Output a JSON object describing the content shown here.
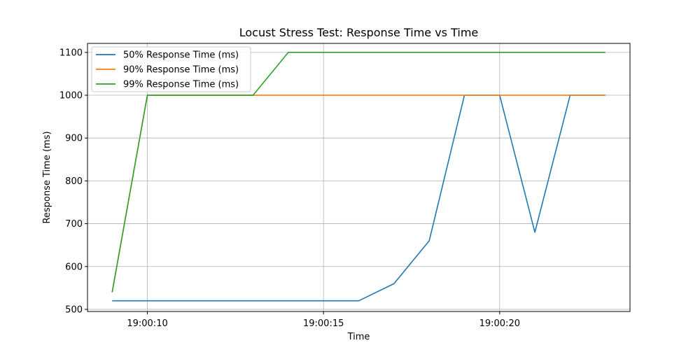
{
  "chart_data": {
    "type": "line",
    "title": "Locust Stress Test: Response Time vs Time",
    "xlabel": "Time",
    "ylabel": "Response Time (ms)",
    "x": [
      "19:00:09",
      "19:00:10",
      "19:00:11",
      "19:00:12",
      "19:00:13",
      "19:00:14",
      "19:00:15",
      "19:00:16",
      "19:00:17",
      "19:00:18",
      "19:00:19",
      "19:00:20",
      "19:00:21",
      "19:00:22",
      "19:00:23"
    ],
    "xticks": [
      "19:00:10",
      "19:00:15",
      "19:00:20"
    ],
    "yticks": [
      500,
      600,
      700,
      800,
      900,
      1000,
      1100
    ],
    "xlim": [
      "19:00:08.3",
      "19:00:23.7"
    ],
    "ylim": [
      495,
      1121
    ],
    "grid": true,
    "legend_position": "top-left",
    "series": [
      {
        "name": "50% Response Time (ms)",
        "color": "#1f77b4",
        "values": [
          520,
          520,
          520,
          520,
          520,
          520,
          520,
          520,
          560,
          660,
          1000,
          1000,
          680,
          1000,
          1000
        ]
      },
      {
        "name": "90% Response Time (ms)",
        "color": "#ff7f0e",
        "values": [
          540,
          1000,
          1000,
          1000,
          1000,
          1000,
          1000,
          1000,
          1000,
          1000,
          1000,
          1000,
          1000,
          1000,
          1000
        ]
      },
      {
        "name": "99% Response Time (ms)",
        "color": "#2ca02c",
        "values": [
          540,
          1000,
          1000,
          1000,
          1000,
          1100,
          1100,
          1100,
          1100,
          1100,
          1100,
          1100,
          1100,
          1100,
          1100
        ]
      }
    ]
  }
}
